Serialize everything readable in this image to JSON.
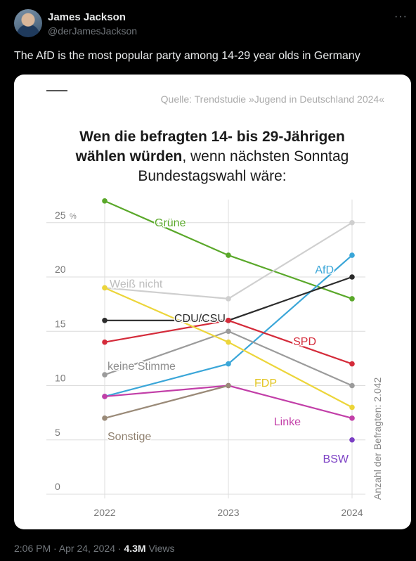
{
  "post": {
    "display_name": "James Jackson",
    "handle": "@derJamesJackson",
    "more_icon": "more-icon",
    "text": "The AfD is the most popular party among 14-29 year olds in Germany",
    "time": "2:06 PM",
    "date": "Apr 24, 2024",
    "views_count": "4.3M",
    "views_label": "Views"
  },
  "chart_data": {
    "type": "line",
    "source": "Quelle: Trendstudie »Jugend in Deutschland 2024«",
    "title_line1": "Wen die befragten 14- bis 29-Jährigen",
    "title_line2_bold": "wählen würden",
    "title_line2_rest": ", wenn nächsten Sonntag",
    "title_line3": "Bundestagswahl wäre:",
    "ylabel": "%",
    "side_note": "Anzahl der Befragten: 2.042",
    "x": [
      "2022",
      "2023",
      "2024"
    ],
    "ylim": [
      0,
      25
    ],
    "yticks": [
      0,
      5,
      10,
      15,
      20,
      25
    ],
    "grid": true,
    "series": [
      {
        "name": "Grüne",
        "color": "#5aa82a",
        "values": [
          27,
          22,
          18
        ]
      },
      {
        "name": "Weiß nicht",
        "color": "#cfcfcf",
        "values": [
          19,
          18,
          25
        ]
      },
      {
        "name": "AfD",
        "color": "#3aa6d8",
        "values": [
          9,
          12,
          22
        ]
      },
      {
        "name": "CDU/CSU",
        "color": "#2b2b2b",
        "values": [
          16,
          16,
          20
        ]
      },
      {
        "name": "SPD",
        "color": "#d42b3a",
        "values": [
          14,
          16,
          12
        ]
      },
      {
        "name": "keine Stimme",
        "color": "#9b9b9b",
        "values": [
          11,
          15,
          10
        ]
      },
      {
        "name": "FDP",
        "color": "#ecd53a",
        "values": [
          19,
          14,
          8
        ]
      },
      {
        "name": "Linke",
        "color": "#c23fa8",
        "values": [
          9,
          10,
          7
        ]
      },
      {
        "name": "Sonstige",
        "color": "#9a8a78",
        "values": [
          7,
          10,
          null
        ]
      },
      {
        "name": "BSW",
        "color": "#7b3fc4",
        "values": [
          null,
          null,
          5
        ]
      }
    ]
  }
}
